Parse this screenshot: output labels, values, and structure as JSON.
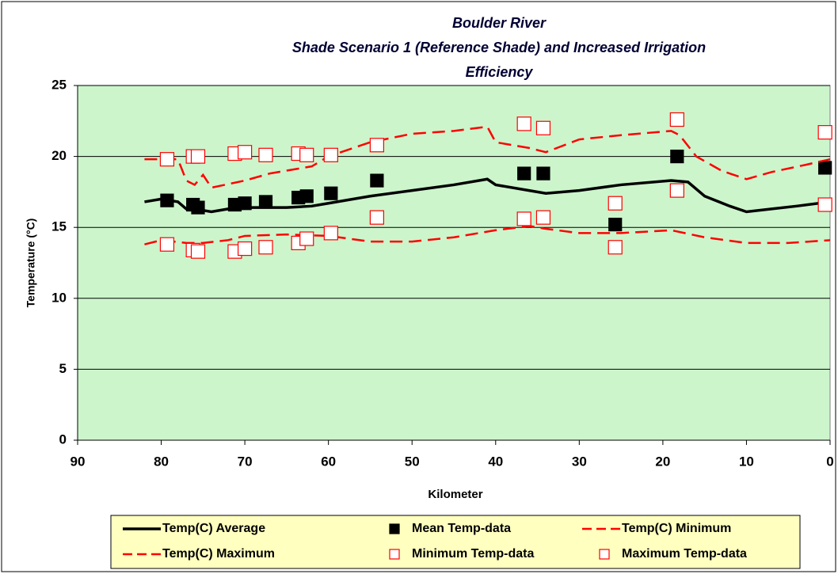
{
  "chart_data": {
    "type": "line",
    "title": [
      "Boulder River",
      "Shade Scenario 1 (Reference Shade) and Increased Irrigation",
      "Efficiency"
    ],
    "x_label": "Kilometer",
    "y_label": "Temperature (°C)",
    "xlim": [
      90,
      0
    ],
    "xticks": [
      90,
      80,
      70,
      60,
      50,
      40,
      30,
      20,
      10,
      0
    ],
    "ylim": [
      0,
      25
    ],
    "yticks": [
      0,
      5,
      10,
      15,
      20,
      25
    ],
    "grid": true,
    "plot_background": "#ccf5cc",
    "series": [
      {
        "name": "Temp(C) Average",
        "color": "#000000",
        "line_style": "solid",
        "marker": "none",
        "x": [
          82,
          80,
          78,
          77,
          75,
          74,
          72,
          70,
          65,
          62,
          60,
          55,
          50,
          45,
          41,
          40,
          36,
          34,
          30,
          25,
          19,
          17,
          15,
          12,
          10,
          7,
          4,
          0
        ],
        "values": [
          16.8,
          17.0,
          16.8,
          16.3,
          16.2,
          16.1,
          16.3,
          16.4,
          16.4,
          16.5,
          16.7,
          17.2,
          17.6,
          18.0,
          18.4,
          18.0,
          17.6,
          17.4,
          17.6,
          18.0,
          18.3,
          18.2,
          17.2,
          16.5,
          16.1,
          16.3,
          16.5,
          16.8
        ]
      },
      {
        "name": "Mean Temp-data",
        "color": "#000000",
        "line_style": "none",
        "marker": "square-filled",
        "x": [
          79.3,
          76.2,
          75.6,
          71.2,
          70.0,
          67.5,
          63.6,
          62.6,
          59.7,
          54.2,
          36.6,
          34.3,
          25.7,
          18.3,
          0.6
        ],
        "values": [
          16.9,
          16.6,
          16.4,
          16.6,
          16.7,
          16.8,
          17.1,
          17.2,
          17.4,
          18.3,
          18.8,
          18.8,
          15.2,
          20.0,
          19.2
        ]
      },
      {
        "name": "Temp(C) Minimum",
        "color": "#ff0000",
        "line_style": "dashed",
        "marker": "none",
        "x": [
          82,
          80,
          77,
          75,
          72,
          70,
          65,
          60,
          55,
          50,
          45,
          40,
          36,
          34,
          30,
          25,
          19,
          15,
          10,
          5,
          0
        ],
        "values": [
          13.8,
          14.1,
          13.9,
          13.9,
          14.1,
          14.4,
          14.5,
          14.4,
          14.0,
          14.0,
          14.3,
          14.8,
          15.1,
          14.9,
          14.6,
          14.6,
          14.8,
          14.3,
          13.9,
          13.9,
          14.1
        ]
      },
      {
        "name": "Temp(C) Maximum",
        "color": "#ff0000",
        "line_style": "dashed",
        "marker": "none",
        "x": [
          82,
          78,
          77,
          76,
          75,
          74,
          70,
          67,
          62,
          60,
          55,
          50,
          45,
          41,
          40,
          36,
          34,
          30,
          25,
          19,
          18,
          16,
          13,
          10,
          7,
          3,
          0
        ],
        "values": [
          19.8,
          19.8,
          18.3,
          18.0,
          18.7,
          17.8,
          18.3,
          18.8,
          19.3,
          20.0,
          21.0,
          21.6,
          21.8,
          22.1,
          21.0,
          20.6,
          20.3,
          21.2,
          21.5,
          21.8,
          21.5,
          20.0,
          19.0,
          18.4,
          18.9,
          19.4,
          19.8
        ]
      },
      {
        "name": "Minimum Temp-data",
        "color": "#ff0000",
        "line_style": "none",
        "marker": "square-open",
        "x": [
          79.3,
          76.2,
          75.6,
          71.2,
          70.0,
          67.5,
          63.6,
          62.6,
          59.7,
          54.2,
          36.6,
          34.3,
          25.7,
          18.3,
          0.6
        ],
        "values": [
          13.8,
          13.4,
          13.3,
          13.3,
          13.5,
          13.6,
          13.9,
          14.2,
          14.6,
          15.7,
          15.6,
          15.7,
          13.6,
          17.6,
          16.6
        ]
      },
      {
        "name": "Maximum Temp-data",
        "color": "#ff0000",
        "line_style": "none",
        "marker": "square-open",
        "x": [
          79.3,
          76.2,
          75.6,
          71.2,
          70.0,
          67.5,
          63.6,
          62.6,
          59.7,
          54.2,
          36.6,
          34.3,
          25.7,
          18.3,
          0.6
        ],
        "values": [
          19.8,
          20.0,
          20.0,
          20.2,
          20.3,
          20.1,
          20.2,
          20.1,
          20.1,
          20.8,
          22.3,
          22.0,
          16.7,
          22.6,
          21.7
        ]
      }
    ]
  }
}
